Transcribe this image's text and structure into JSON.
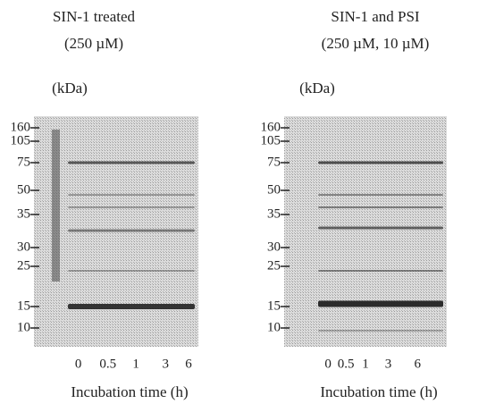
{
  "panels": [
    {
      "title": [
        "SIN-1 treated",
        "(250 µM)"
      ],
      "unit": "(kDa)",
      "markers": [
        "160",
        "105",
        "75",
        "50",
        "35",
        "30",
        "25",
        "15",
        "10"
      ],
      "lanes": [
        "0",
        "0.5",
        "1",
        "3",
        "6"
      ],
      "xlabel": "Incubation time (h)"
    },
    {
      "title": [
        "SIN-1 and PSI",
        "(250 µM,  10 µM)"
      ],
      "unit": "(kDa)",
      "markers": [
        "160",
        "105",
        "75",
        "50",
        "35",
        "30",
        "25",
        "15",
        "10"
      ],
      "lanes": [
        "0",
        "0.5",
        "1",
        "3",
        "6"
      ],
      "xlabel": "Incubation time (h)"
    }
  ]
}
